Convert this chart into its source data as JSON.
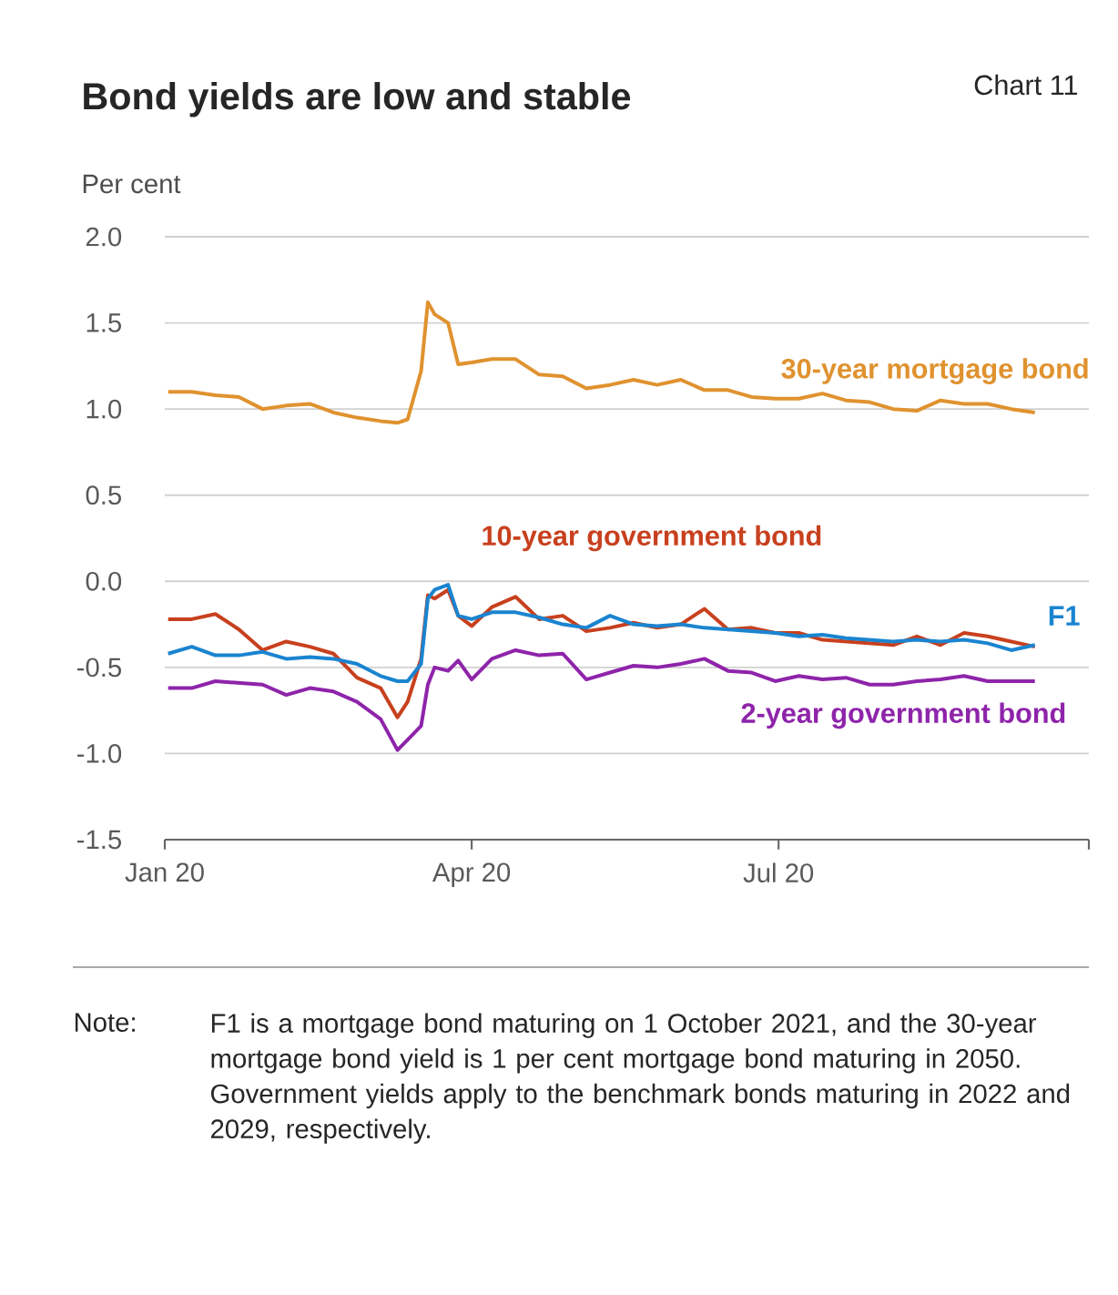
{
  "chart_data": {
    "type": "line",
    "title": "Bond yields are low and stable",
    "subtitle": "Chart 11",
    "ylabel": "Per cent",
    "x": [
      "2020-01-02",
      "2020-01-09",
      "2020-01-16",
      "2020-01-23",
      "2020-01-30",
      "2020-02-06",
      "2020-02-13",
      "2020-02-20",
      "2020-02-27",
      "2020-03-05",
      "2020-03-10",
      "2020-03-13",
      "2020-03-17",
      "2020-03-19",
      "2020-03-21",
      "2020-03-25",
      "2020-03-28",
      "2020-04-01",
      "2020-04-07",
      "2020-04-14",
      "2020-04-21",
      "2020-04-28",
      "2020-05-05",
      "2020-05-12",
      "2020-05-19",
      "2020-05-26",
      "2020-06-02",
      "2020-06-09",
      "2020-06-16",
      "2020-06-23",
      "2020-06-30",
      "2020-07-07",
      "2020-07-14",
      "2020-07-21",
      "2020-07-28",
      "2020-08-04",
      "2020-08-11",
      "2020-08-18",
      "2020-08-25",
      "2020-09-01",
      "2020-09-08",
      "2020-09-15"
    ],
    "series": [
      {
        "name": "30-year mortgage bond",
        "color": "#e0922f",
        "values": [
          1.1,
          1.1,
          1.08,
          1.07,
          1.0,
          1.02,
          1.03,
          0.98,
          0.95,
          0.93,
          0.92,
          0.94,
          1.22,
          1.62,
          1.55,
          1.5,
          1.26,
          1.27,
          1.29,
          1.29,
          1.2,
          1.19,
          1.12,
          1.14,
          1.17,
          1.14,
          1.17,
          1.11,
          1.11,
          1.07,
          1.06,
          1.06,
          1.09,
          1.05,
          1.04,
          1.0,
          0.99,
          1.05,
          1.03,
          1.03,
          1.0,
          0.98
        ]
      },
      {
        "name": "10-year government bond",
        "color": "#c8401e",
        "values": [
          -0.22,
          -0.22,
          -0.19,
          -0.28,
          -0.4,
          -0.35,
          -0.38,
          -0.42,
          -0.56,
          -0.62,
          -0.79,
          -0.7,
          -0.45,
          -0.08,
          -0.1,
          -0.05,
          -0.2,
          -0.26,
          -0.15,
          -0.09,
          -0.22,
          -0.2,
          -0.29,
          -0.27,
          -0.24,
          -0.27,
          -0.25,
          -0.16,
          -0.28,
          -0.27,
          -0.3,
          -0.3,
          -0.34,
          -0.35,
          -0.36,
          -0.37,
          -0.32,
          -0.37,
          -0.3,
          -0.32,
          -0.35,
          -0.38
        ]
      },
      {
        "name": "F1",
        "color": "#1a84d0",
        "values": [
          -0.42,
          -0.38,
          -0.43,
          -0.43,
          -0.41,
          -0.45,
          -0.44,
          -0.45,
          -0.48,
          -0.55,
          -0.58,
          -0.58,
          -0.48,
          -0.1,
          -0.05,
          -0.02,
          -0.2,
          -0.22,
          -0.18,
          -0.18,
          -0.21,
          -0.25,
          -0.27,
          -0.2,
          -0.25,
          -0.26,
          -0.25,
          -0.27,
          -0.28,
          -0.29,
          -0.3,
          -0.32,
          -0.31,
          -0.33,
          -0.34,
          -0.35,
          -0.34,
          -0.35,
          -0.34,
          -0.36,
          -0.4,
          -0.37
        ]
      },
      {
        "name": "2-year government bond",
        "color": "#8e24aa",
        "values": [
          -0.62,
          -0.62,
          -0.58,
          -0.59,
          -0.6,
          -0.66,
          -0.62,
          -0.64,
          -0.7,
          -0.8,
          -0.98,
          -0.92,
          -0.84,
          -0.6,
          -0.5,
          -0.52,
          -0.46,
          -0.57,
          -0.45,
          -0.4,
          -0.43,
          -0.42,
          -0.57,
          -0.53,
          -0.49,
          -0.5,
          -0.48,
          -0.45,
          -0.52,
          -0.53,
          -0.58,
          -0.55,
          -0.57,
          -0.56,
          -0.6,
          -0.6,
          -0.58,
          -0.57,
          -0.55,
          -0.58,
          -0.58,
          -0.58
        ]
      }
    ],
    "xlim": [
      "2020-01-01",
      "2020-10-01"
    ],
    "xticks": [
      {
        "value": "2020-01-01",
        "label": "Jan 20"
      },
      {
        "value": "2020-04-01",
        "label": "Apr 20"
      },
      {
        "value": "2020-07-01",
        "label": "Jul 20"
      },
      {
        "value": "2020-10-01",
        "label": null
      }
    ],
    "ylim": [
      -1.5,
      2.0
    ],
    "yticks": [
      {
        "value": -1.5,
        "label": "-1.5"
      },
      {
        "value": -1.0,
        "label": "-1.0"
      },
      {
        "value": -0.5,
        "label": "-0.5"
      },
      {
        "value": 0.0,
        "label": "0.0"
      },
      {
        "value": 0.5,
        "label": "0.5"
      },
      {
        "value": 1.0,
        "label": "1.0"
      },
      {
        "value": 1.5,
        "label": "1.5"
      },
      {
        "value": 2.0,
        "label": "2.0"
      }
    ],
    "grid": "y",
    "annotations": [
      "Note:",
      "F1 is a mortgage bond maturing on 1 October 2021, and the 30-year mortgage bond yield is 1 per cent mortgage bond maturing in 2050. Government yields apply to the benchmark bonds maturing in 2022 and 2029, respectively."
    ]
  }
}
